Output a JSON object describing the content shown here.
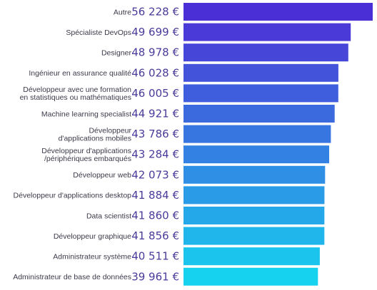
{
  "chart_data": {
    "type": "bar",
    "orientation": "horizontal",
    "categories": [
      "Autre",
      "Spécialiste DevOps",
      "Designer",
      "Ingénieur en assurance qualité",
      "Développeur avec une formation\nen statistiques ou mathématiques",
      "Machine learning specialist",
      "Développeur\nd'applications mobiles",
      "Développeur d'applications\n/périphériques embarqués",
      "Développeur web",
      "Développeur d'applications desktop",
      "Data scientist",
      "Développeur graphique",
      "Administrateur système",
      "Administrateur de base de données"
    ],
    "values": [
      56228,
      49699,
      48978,
      46028,
      46005,
      44921,
      43786,
      43284,
      42073,
      41884,
      41860,
      41856,
      40511,
      39961
    ],
    "value_labels": [
      "56 228 €",
      "49 699 €",
      "48 978 €",
      "46 028 €",
      "46 005 €",
      "44 921 €",
      "43 786 €",
      "43 284 €",
      "42 073 €",
      "41 884 €",
      "41 860 €",
      "41 856 €",
      "40 511 €",
      "39 961 €"
    ],
    "colors": [
      "#4b2fd6",
      "#4a3bd8",
      "#4646d9",
      "#4354db",
      "#3f5edd",
      "#3b6adf",
      "#3775e1",
      "#3382e3",
      "#2e8fe5",
      "#2a9be7",
      "#25a8e9",
      "#20b5eb",
      "#1bc4ed",
      "#16d2ef"
    ],
    "title": "",
    "xlabel": "",
    "ylabel": "",
    "xlim": [
      0,
      56228
    ],
    "grid": false,
    "legend": "none"
  }
}
